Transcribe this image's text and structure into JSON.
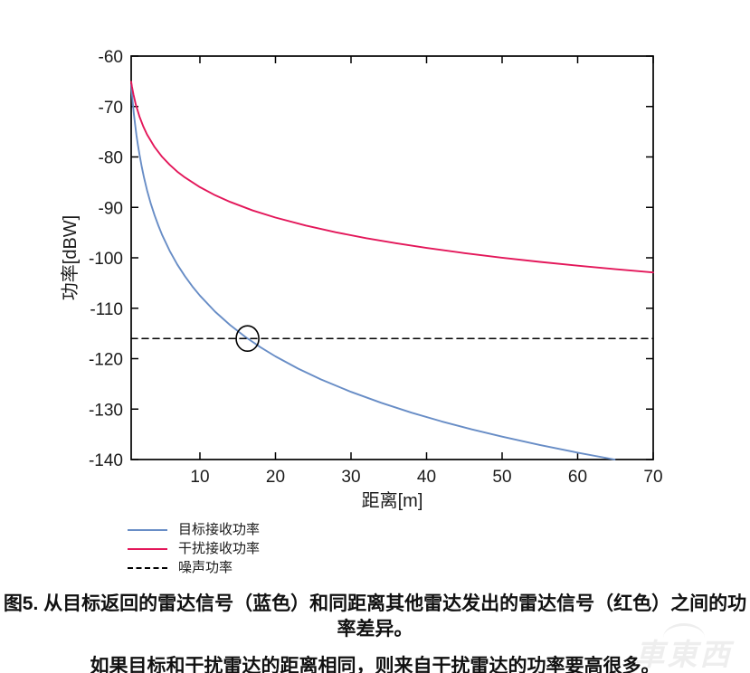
{
  "figure": {
    "caption_line1": "图5. 从目标返回的雷达信号（蓝色）和同距离其他雷达发出的雷达信号（红色）之间的功率差异。",
    "caption_line2": "如果目标和干扰雷达的距离相同，则来自干扰雷达的功率要高很多。"
  },
  "watermark": {
    "text": "車東西",
    "icon": "car-arc-icon"
  },
  "chart_data": {
    "type": "line",
    "title": "",
    "xlabel": "距离[m]",
    "ylabel": "功率[dBW]",
    "xlim": [
      0.9,
      70
    ],
    "ylim": [
      -140,
      -60
    ],
    "x_ticks": [
      10,
      20,
      30,
      40,
      50,
      60,
      70
    ],
    "y_ticks": [
      -60,
      -70,
      -80,
      -90,
      -100,
      -110,
      -120,
      -130,
      -140
    ],
    "grid": false,
    "frame": "box",
    "legend_position": "below-plot-left",
    "axis_color": "#000000",
    "series": [
      {
        "name": "目标接收功率",
        "slug": "target-received-power",
        "color": "#688dc6",
        "style": "solid",
        "model": "P[dBW] = -67.5 - 40*log10(R)",
        "points": [
          [
            0.9,
            -65.67
          ],
          [
            1,
            -67.5
          ],
          [
            1.1,
            -69.16
          ],
          [
            1.25,
            -71.38
          ],
          [
            1.4,
            -73.34
          ],
          [
            1.6,
            -75.67
          ],
          [
            1.8,
            -77.71
          ],
          [
            2,
            -79.54
          ],
          [
            2.3,
            -81.97
          ],
          [
            2.6,
            -84.1
          ],
          [
            3,
            -86.59
          ],
          [
            3.5,
            -89.27
          ],
          [
            4,
            -91.58
          ],
          [
            4.5,
            -93.63
          ],
          [
            5,
            -95.46
          ],
          [
            6,
            -98.63
          ],
          [
            7,
            -101.31
          ],
          [
            8,
            -103.62
          ],
          [
            9,
            -105.67
          ],
          [
            10,
            -107.5
          ],
          [
            12,
            -110.67
          ],
          [
            14,
            -113.35
          ],
          [
            16,
            -115.67
          ],
          [
            16.3,
            -115.99
          ],
          [
            18,
            -117.72
          ],
          [
            20,
            -119.55
          ],
          [
            23,
            -121.97
          ],
          [
            26,
            -124.1
          ],
          [
            30,
            -126.59
          ],
          [
            34,
            -128.76
          ],
          [
            38,
            -130.7
          ],
          [
            42,
            -132.44
          ],
          [
            46,
            -134.02
          ],
          [
            50,
            -135.47
          ],
          [
            55,
            -137.12
          ],
          [
            60,
            -138.63
          ],
          [
            64.9,
            -140
          ]
        ]
      },
      {
        "name": "干扰接收功率",
        "slug": "interference-received-power",
        "color": "#e3175a",
        "style": "solid",
        "model": "P[dBW] = -66 - 20*log10(R)",
        "points": [
          [
            0.9,
            -65.08
          ],
          [
            1,
            -66
          ],
          [
            1.2,
            -67.58
          ],
          [
            1.5,
            -69.52
          ],
          [
            2,
            -72.02
          ],
          [
            2.5,
            -73.96
          ],
          [
            3,
            -75.54
          ],
          [
            4,
            -78.04
          ],
          [
            5,
            -79.98
          ],
          [
            6,
            -81.56
          ],
          [
            7,
            -82.9
          ],
          [
            8,
            -84.06
          ],
          [
            10,
            -86
          ],
          [
            12,
            -87.58
          ],
          [
            14,
            -88.92
          ],
          [
            17,
            -90.61
          ],
          [
            20,
            -92.02
          ],
          [
            24,
            -93.6
          ],
          [
            28,
            -94.94
          ],
          [
            32,
            -96.1
          ],
          [
            36,
            -97.12
          ],
          [
            40,
            -98.04
          ],
          [
            45,
            -99.06
          ],
          [
            50,
            -99.98
          ],
          [
            55,
            -100.81
          ],
          [
            60,
            -101.56
          ],
          [
            65,
            -102.26
          ],
          [
            70,
            -102.9
          ]
        ]
      },
      {
        "name": "噪声功率",
        "slug": "noise-power",
        "color": "#000000",
        "style": "dashed",
        "model": "P[dBW] = -116",
        "points": [
          [
            0.9,
            -116
          ],
          [
            70,
            -116
          ]
        ]
      }
    ],
    "annotations": [
      {
        "type": "circle",
        "x": 16.3,
        "y": -116,
        "meaning": "target received power crosses noise power"
      }
    ]
  }
}
